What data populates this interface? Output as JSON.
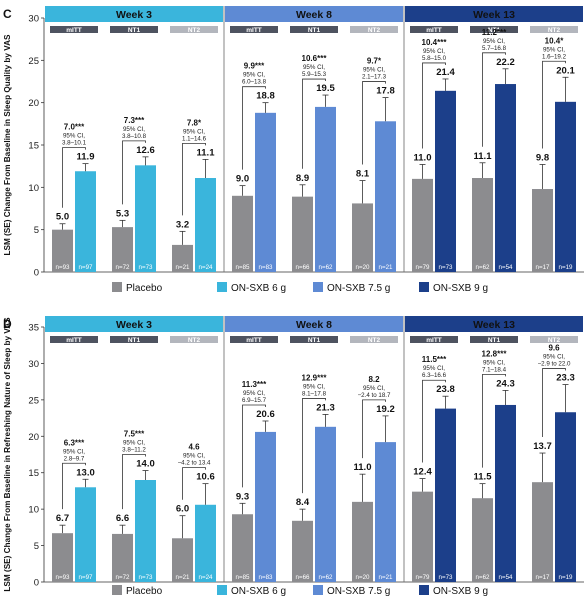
{
  "chart_data": [
    {
      "type": "bar",
      "panel_letter": "C",
      "ylabel": "LSM (SE) Change From Baseline in Sleep Quality by VAS",
      "ylim": [
        0,
        30
      ],
      "yticks": [
        0,
        5,
        10,
        15,
        20,
        25,
        30
      ],
      "legend": "bottom",
      "series": [
        {
          "name": "Placebo",
          "color": "#8c8c8f"
        },
        {
          "name": "ON-SXB 6 g",
          "color": "#3ab5dc"
        },
        {
          "name": "ON-SXB 7.5 g",
          "color": "#5e8ad4"
        },
        {
          "name": "ON-SXB 9 g",
          "color": "#1c3f8a"
        }
      ],
      "weeks": [
        {
          "label": "Week 3",
          "groups": [
            {
              "label": "mITT",
              "placebo": 5.0,
              "placebo_label": "5.0",
              "placebo_se": 0.7,
              "active": 11.9,
              "active_label": "11.9",
              "active_se": 0.9,
              "active_series": 1,
              "n_placebo": "n=93",
              "n_active": "n=97",
              "diff_label": "7.0***",
              "ci_title": "95% CI,",
              "ci_range": "3.8–10.1"
            },
            {
              "label": "NT1",
              "placebo": 5.3,
              "placebo_label": "5.3",
              "placebo_se": 0.8,
              "active": 12.6,
              "active_label": "12.6",
              "active_se": 1.0,
              "active_series": 1,
              "n_placebo": "n=72",
              "n_active": "n=73",
              "diff_label": "7.3***",
              "ci_title": "95% CI,",
              "ci_range": "3.8–10.8"
            },
            {
              "label": "NT2",
              "placebo": 3.2,
              "placebo_label": "3.2",
              "placebo_se": 1.6,
              "active": 11.1,
              "active_label": "11.1",
              "active_se": 2.2,
              "active_series": 1,
              "n_placebo": "n=21",
              "n_active": "n=24",
              "diff_label": "7.8*",
              "ci_title": "95% CI,",
              "ci_range": "1.1–14.6"
            }
          ]
        },
        {
          "label": "Week 8",
          "groups": [
            {
              "label": "mITT",
              "placebo": 9.0,
              "placebo_label": "9.0",
              "placebo_se": 1.2,
              "active": 18.8,
              "active_label": "18.8",
              "active_se": 1.2,
              "active_series": 2,
              "n_placebo": "n=85",
              "n_active": "n=83",
              "diff_label": "9.9***",
              "ci_title": "95% CI,",
              "ci_range": "6.0–13.8"
            },
            {
              "label": "NT1",
              "placebo": 8.9,
              "placebo_label": "8.9",
              "placebo_se": 1.4,
              "active": 19.5,
              "active_label": "19.5",
              "active_se": 1.4,
              "active_series": 2,
              "n_placebo": "n=66",
              "n_active": "n=62",
              "diff_label": "10.6***",
              "ci_title": "95% CI,",
              "ci_range": "5.9–15.3"
            },
            {
              "label": "NT2",
              "placebo": 8.1,
              "placebo_label": "8.1",
              "placebo_se": 2.7,
              "active": 17.8,
              "active_label": "17.8",
              "active_se": 2.8,
              "active_series": 2,
              "n_placebo": "n=20",
              "n_active": "n=21",
              "diff_label": "9.7*",
              "ci_title": "95% CI,",
              "ci_range": "2.1–17.3"
            }
          ]
        },
        {
          "label": "Week 13",
          "groups": [
            {
              "label": "mITT",
              "placebo": 11.0,
              "placebo_label": "11.0",
              "placebo_se": 1.7,
              "active": 21.4,
              "active_label": "21.4",
              "active_se": 1.4,
              "active_series": 3,
              "n_placebo": "n=79",
              "n_active": "n=73",
              "diff_label": "10.4***",
              "ci_title": "95% CI,",
              "ci_range": "5.8–15.0"
            },
            {
              "label": "NT1",
              "placebo": 11.1,
              "placebo_label": "11.1",
              "placebo_se": 1.8,
              "active": 22.2,
              "active_label": "22.2",
              "active_se": 1.8,
              "active_series": 3,
              "n_placebo": "n=62",
              "n_active": "n=54",
              "diff_label": "11.2***",
              "ci_title": "95% CI,",
              "ci_range": "5.7–16.8"
            },
            {
              "label": "NT2",
              "placebo": 9.8,
              "placebo_label": "9.8",
              "placebo_se": 2.9,
              "active": 20.1,
              "active_label": "20.1",
              "active_se": 2.9,
              "active_series": 3,
              "n_placebo": "n=17",
              "n_active": "n=19",
              "diff_label": "10.4*",
              "ci_title": "95% CI,",
              "ci_range": "1.6–19.2"
            }
          ]
        }
      ]
    },
    {
      "type": "bar",
      "panel_letter": "D",
      "ylabel": "LSM (SE) Change From Baseline in Refreshing Nature of Sleep by VAS",
      "ylim": [
        0,
        35
      ],
      "yticks": [
        0,
        5,
        10,
        15,
        20,
        25,
        30,
        35
      ],
      "legend": "bottom",
      "series": [
        {
          "name": "Placebo",
          "color": "#8c8c8f"
        },
        {
          "name": "ON-SXB 6 g",
          "color": "#3ab5dc"
        },
        {
          "name": "ON-SXB 7.5 g",
          "color": "#5e8ad4"
        },
        {
          "name": "ON-SXB 9 g",
          "color": "#1c3f8a"
        }
      ],
      "weeks": [
        {
          "label": "Week 3",
          "groups": [
            {
              "label": "mITT",
              "placebo": 6.7,
              "placebo_label": "6.7",
              "placebo_se": 1.1,
              "active": 13.0,
              "active_label": "13.0",
              "active_se": 1.1,
              "active_series": 1,
              "n_placebo": "n=93",
              "n_active": "n=97",
              "diff_label": "6.3***",
              "ci_title": "95% CI,",
              "ci_range": "2.8–9.7"
            },
            {
              "label": "NT1",
              "placebo": 6.6,
              "placebo_label": "6.6",
              "placebo_se": 1.2,
              "active": 14.0,
              "active_label": "14.0",
              "active_se": 1.3,
              "active_series": 1,
              "n_placebo": "n=72",
              "n_active": "n=73",
              "diff_label": "7.5***",
              "ci_title": "95% CI,",
              "ci_range": "3.8–11.2"
            },
            {
              "label": "NT2",
              "placebo": 6.0,
              "placebo_label": "6.0",
              "placebo_se": 3.1,
              "active": 10.6,
              "active_label": "10.6",
              "active_se": 2.9,
              "active_series": 1,
              "n_placebo": "n=21",
              "n_active": "n=24",
              "diff_label": "4.6",
              "ci_title": "95% CI,",
              "ci_range": "−4.2 to 13.4"
            }
          ]
        },
        {
          "label": "Week 8",
          "groups": [
            {
              "label": "mITT",
              "placebo": 9.3,
              "placebo_label": "9.3",
              "placebo_se": 1.5,
              "active": 20.6,
              "active_label": "20.6",
              "active_se": 1.5,
              "active_series": 2,
              "n_placebo": "n=85",
              "n_active": "n=83",
              "diff_label": "11.3***",
              "ci_title": "95% CI,",
              "ci_range": "6.9–15.7"
            },
            {
              "label": "NT1",
              "placebo": 8.4,
              "placebo_label": "8.4",
              "placebo_se": 1.6,
              "active": 21.3,
              "active_label": "21.3",
              "active_se": 1.7,
              "active_series": 2,
              "n_placebo": "n=66",
              "n_active": "n=62",
              "diff_label": "12.9***",
              "ci_title": "95% CI,",
              "ci_range": "8.1–17.8"
            },
            {
              "label": "NT2",
              "placebo": 11.0,
              "placebo_label": "11.0",
              "placebo_se": 3.8,
              "active": 19.2,
              "active_label": "19.2",
              "active_se": 3.6,
              "active_series": 2,
              "n_placebo": "n=20",
              "n_active": "n=21",
              "diff_label": "8.2",
              "ci_title": "95% CI,",
              "ci_range": "−2.4 to 18.7"
            }
          ]
        },
        {
          "label": "Week 13",
          "groups": [
            {
              "label": "mITT",
              "placebo": 12.4,
              "placebo_label": "12.4",
              "placebo_se": 1.8,
              "active": 23.8,
              "active_label": "23.8",
              "active_se": 1.7,
              "active_series": 3,
              "n_placebo": "n=79",
              "n_active": "n=73",
              "diff_label": "11.5***",
              "ci_title": "95% CI,",
              "ci_range": "6.3–16.6"
            },
            {
              "label": "NT1",
              "placebo": 11.5,
              "placebo_label": "11.5",
              "placebo_se": 2.0,
              "active": 24.3,
              "active_label": "24.3",
              "active_se": 2.0,
              "active_series": 3,
              "n_placebo": "n=62",
              "n_active": "n=54",
              "diff_label": "12.8***",
              "ci_title": "95% CI,",
              "ci_range": "7.1–18.4"
            },
            {
              "label": "NT2",
              "placebo": 13.7,
              "placebo_label": "13.7",
              "placebo_se": 4.0,
              "active": 23.3,
              "active_label": "23.3",
              "active_se": 3.8,
              "active_series": 3,
              "n_placebo": "n=17",
              "n_active": "n=19",
              "diff_label": "9.6",
              "ci_title": "95% CI,",
              "ci_range": "−2.9 to 22.0"
            }
          ]
        }
      ]
    }
  ]
}
